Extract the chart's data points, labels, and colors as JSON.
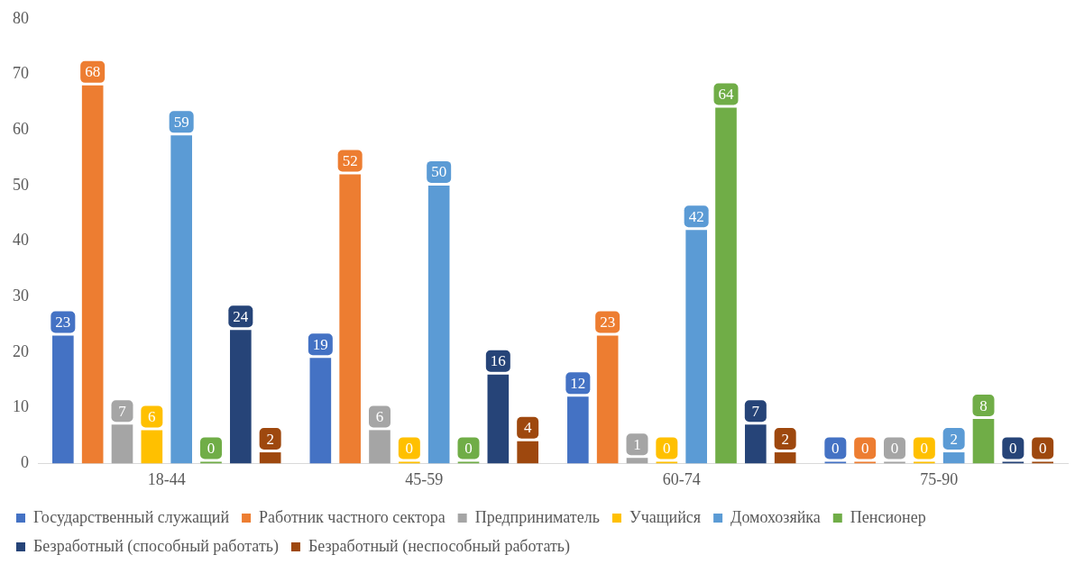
{
  "chart_data": {
    "type": "bar",
    "categories": [
      "18-44",
      "45-59",
      "60-74",
      "75-90"
    ],
    "series": [
      {
        "name": "Государственный служащий",
        "color": "#4472c4",
        "values": [
          23,
          19,
          12,
          0
        ]
      },
      {
        "name": "Работник частного сектора",
        "color": "#ed7d31",
        "values": [
          68,
          52,
          23,
          0
        ]
      },
      {
        "name": "Предприниматель",
        "color": "#a5a5a5",
        "values": [
          7,
          6,
          1,
          0
        ]
      },
      {
        "name": "Учащийся",
        "color": "#ffc000",
        "values": [
          6,
          0,
          0,
          0
        ]
      },
      {
        "name": "Домохозяйка",
        "color": "#5b9bd5",
        "values": [
          59,
          50,
          42,
          2
        ]
      },
      {
        "name": "Пенсионер",
        "color": "#70ad47",
        "values": [
          0,
          0,
          64,
          8
        ]
      },
      {
        "name": "Безработный (способный работать)",
        "color": "#264478",
        "values": [
          24,
          16,
          7,
          0
        ]
      },
      {
        "name": "Безработный (неспособный работать)",
        "color": "#9e480e",
        "values": [
          2,
          4,
          2,
          0
        ]
      }
    ],
    "ylim": [
      0,
      80
    ],
    "yticks": [
      0,
      10,
      20,
      30,
      40,
      50,
      60,
      70,
      80
    ],
    "grid": false,
    "legend": "bottom",
    "data_labels": true
  }
}
